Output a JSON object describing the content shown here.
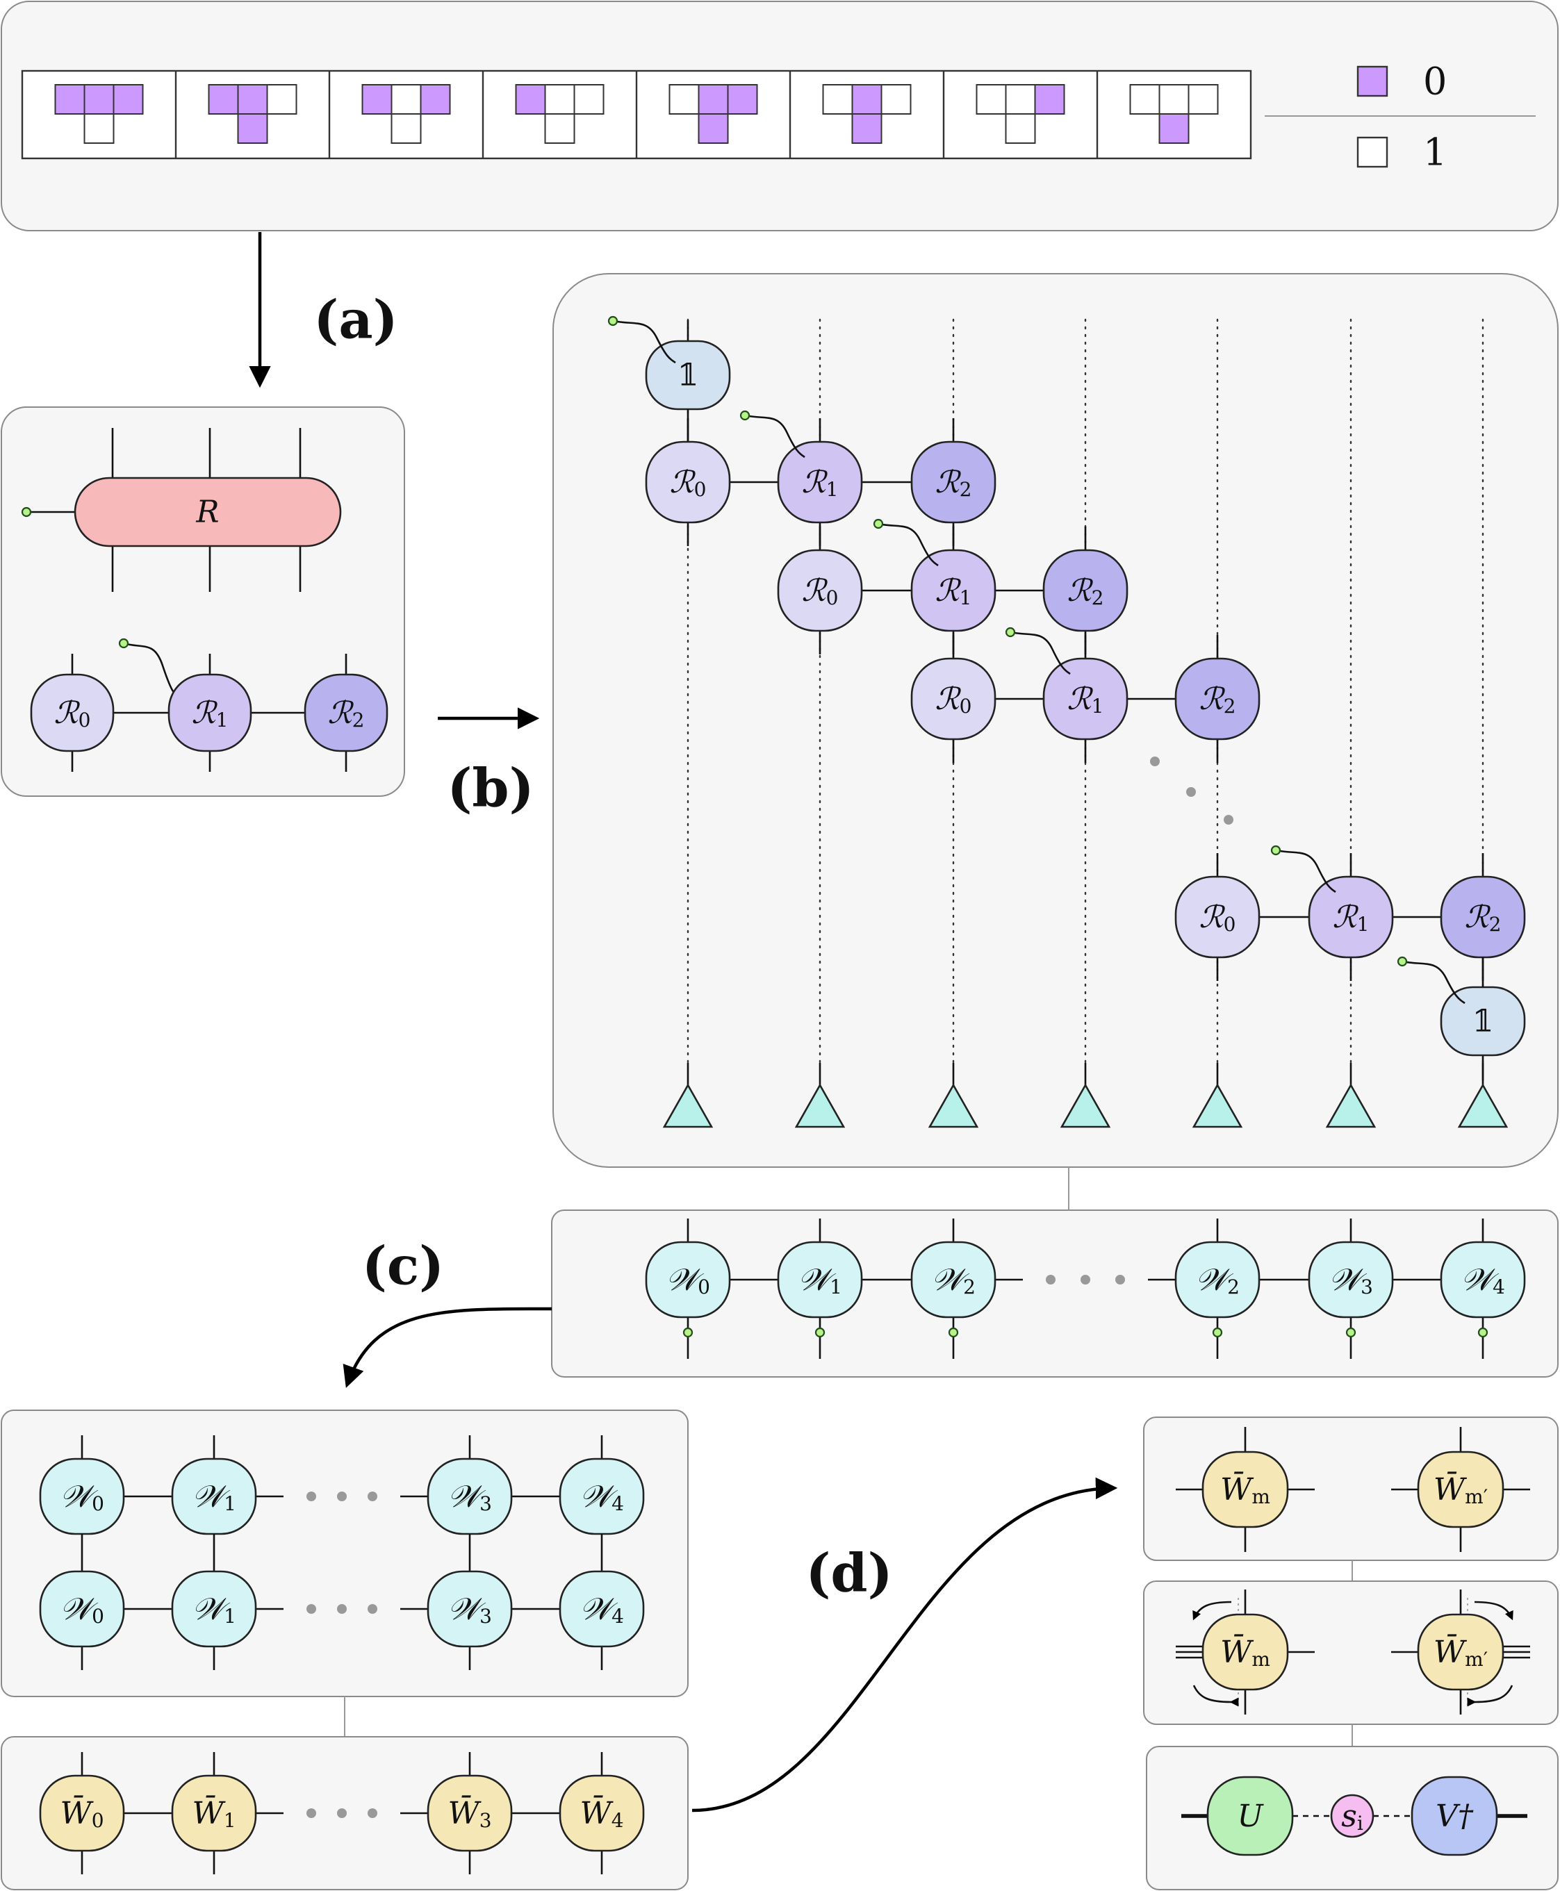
{
  "legend": [
    {
      "value": "0",
      "color": "#cc99ff"
    },
    {
      "value": "1",
      "color": "#ffffff"
    }
  ],
  "configurations": [
    [
      0,
      0,
      0,
      1
    ],
    [
      0,
      0,
      1,
      0
    ],
    [
      0,
      1,
      0,
      1
    ],
    [
      0,
      1,
      1,
      1
    ],
    [
      1,
      0,
      0,
      0
    ],
    [
      1,
      0,
      1,
      0
    ],
    [
      1,
      1,
      0,
      1
    ],
    [
      1,
      1,
      1,
      0
    ]
  ],
  "step_labels": {
    "a": "(a)",
    "b": "(b)",
    "c": "(c)",
    "d": "(d)"
  },
  "panel_a": {
    "tensor": "R",
    "decomposed": [
      {
        "base": "R",
        "sub": "0"
      },
      {
        "base": "R",
        "sub": "1"
      },
      {
        "base": "R",
        "sub": "2"
      }
    ]
  },
  "panel_b": {
    "identity": "𝟙",
    "node_base": "R",
    "subs": [
      "0",
      "1",
      "2"
    ]
  },
  "panel_c_chain": [
    {
      "base": "W",
      "sub": "0"
    },
    {
      "base": "W",
      "sub": "1"
    },
    {
      "base": "W",
      "sub": "2"
    },
    {
      "base": "W",
      "sub": "2"
    },
    {
      "base": "W",
      "sub": "3"
    },
    {
      "base": "W",
      "sub": "4"
    }
  ],
  "panel_c_grid": [
    {
      "base": "W",
      "sub": "0"
    },
    {
      "base": "W",
      "sub": "1"
    },
    {
      "base": "W",
      "sub": "3"
    },
    {
      "base": "W",
      "sub": "4"
    }
  ],
  "panel_c_bar": [
    {
      "base": "W̄",
      "sub": "0"
    },
    {
      "base": "W̄",
      "sub": "1"
    },
    {
      "base": "W̄",
      "sub": "3"
    },
    {
      "base": "W̄",
      "sub": "4"
    }
  ],
  "panel_d": {
    "pair": [
      {
        "base": "W̄",
        "sub": "m"
      },
      {
        "base": "W̄",
        "sub": "m′"
      }
    ],
    "svd": {
      "u": "U",
      "s": "s",
      "s_sub": "i",
      "v": "V†"
    }
  },
  "colors": {
    "R": "#f7b9b9",
    "R0": "#dcd9f5",
    "R1": "#cfc4f2",
    "R2": "#b8b2ee",
    "identity": "#d3e2f0",
    "W": "#d5f4f6",
    "Wbar": "#f6e8b6",
    "U": "#b9f0b7",
    "s": "#f5bdf0",
    "V": "#b8c6f6"
  }
}
